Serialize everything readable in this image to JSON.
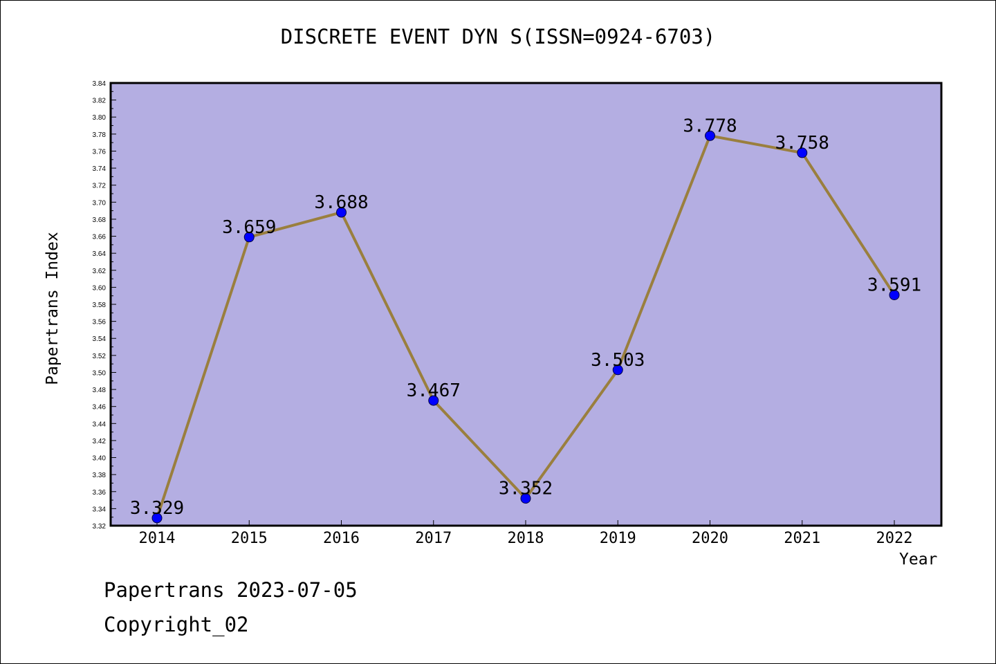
{
  "chart_data": {
    "type": "line",
    "title": "DISCRETE EVENT DYN S(ISSN=0924-6703)",
    "xlabel": "Year",
    "ylabel": "Papertrans Index",
    "categories": [
      "2014",
      "2015",
      "2016",
      "2017",
      "2018",
      "2019",
      "2020",
      "2021",
      "2022"
    ],
    "values": [
      3.329,
      3.659,
      3.688,
      3.467,
      3.352,
      3.503,
      3.778,
      3.758,
      3.591
    ],
    "data_labels": [
      "3.329",
      "3.659",
      "3.688",
      "3.467",
      "3.352",
      "3.503",
      "3.778",
      "3.758",
      "3.591"
    ],
    "ylim": [
      3.32,
      3.84
    ],
    "ytick_step": 0.02,
    "grid": false,
    "colors": {
      "plot_background": "#b4aee2",
      "line": "#9a7f3e",
      "marker": "#0000ff"
    }
  },
  "footer": {
    "date_text": "Papertrans 2023-07-05",
    "copyright_text": "Copyright_02"
  }
}
